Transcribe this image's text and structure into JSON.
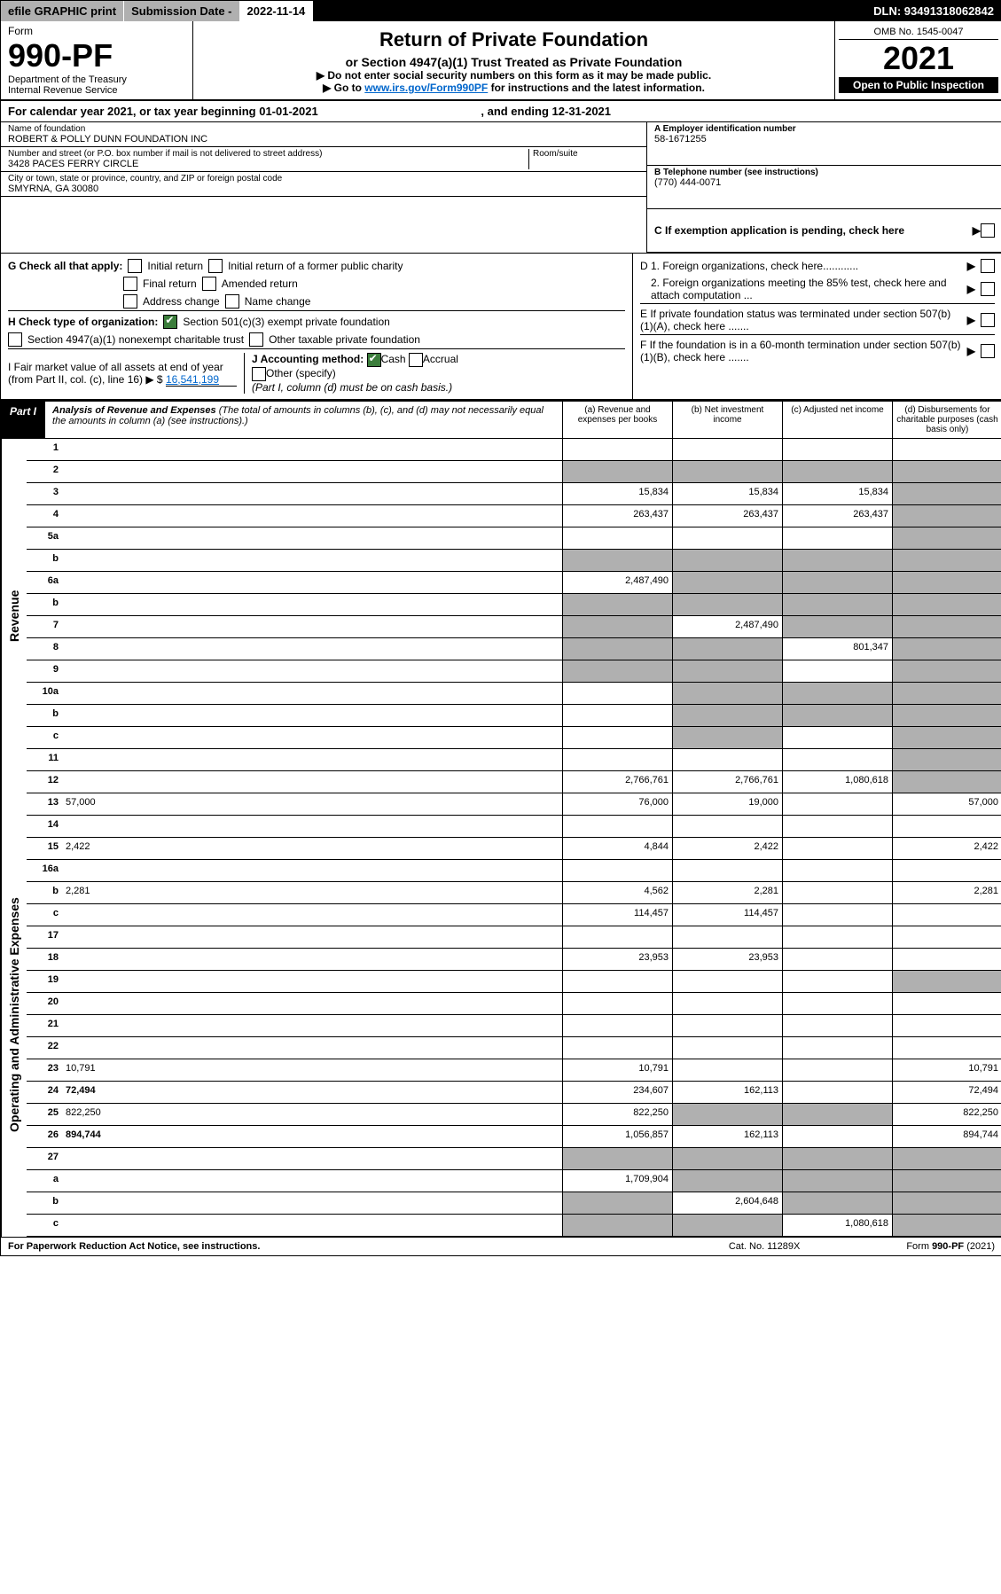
{
  "topbar": {
    "efile": "efile GRAPHIC print",
    "sub_label": "Submission Date - ",
    "sub_date": "2022-11-14",
    "dln": "DLN: 93491318062842"
  },
  "header": {
    "form": "Form",
    "number": "990-PF",
    "dept1": "Department of the Treasury",
    "dept2": "Internal Revenue Service",
    "title": "Return of Private Foundation",
    "subtitle": "or Section 4947(a)(1) Trust Treated as Private Foundation",
    "note1": "▶ Do not enter social security numbers on this form as it may be made public.",
    "note2_pre": "▶ Go to ",
    "note2_link": "www.irs.gov/Form990PF",
    "note2_post": " for instructions and the latest information.",
    "omb": "OMB No. 1545-0047",
    "year": "2021",
    "open": "Open to Public Inspection"
  },
  "cal": {
    "text": "For calendar year 2021, or tax year beginning 01-01-2021",
    "ending": ", and ending 12-31-2021"
  },
  "info": {
    "name_lbl": "Name of foundation",
    "name": "ROBERT & POLLY DUNN FOUNDATION INC",
    "addr_lbl": "Number and street (or P.O. box number if mail is not delivered to street address)",
    "addr": "3428 PACES FERRY CIRCLE",
    "room_lbl": "Room/suite",
    "city_lbl": "City or town, state or province, country, and ZIP or foreign postal code",
    "city": "SMYRNA, GA  30080",
    "ein_lbl": "A Employer identification number",
    "ein": "58-1671255",
    "phone_lbl": "B Telephone number (see instructions)",
    "phone": "(770) 444-0071",
    "exempt_lbl": "C If exemption application is pending, check here"
  },
  "checks": {
    "g_lbl": "G Check all that apply:",
    "g1": "Initial return",
    "g2": "Initial return of a former public charity",
    "g3": "Final return",
    "g4": "Amended return",
    "g5": "Address change",
    "g6": "Name change",
    "h_lbl": "H Check type of organization:",
    "h1": "Section 501(c)(3) exempt private foundation",
    "h2": "Section 4947(a)(1) nonexempt charitable trust",
    "h3": "Other taxable private foundation",
    "i_lbl": "I Fair market value of all assets at end of year (from Part II, col. (c), line 16) ▶ $",
    "i_val": "16,541,199",
    "j_lbl": "J Accounting method:",
    "j1": "Cash",
    "j2": "Accrual",
    "j3": "Other (specify)",
    "j_note": "(Part I, column (d) must be on cash basis.)",
    "d1": "D 1. Foreign organizations, check here............",
    "d2": "2. Foreign organizations meeting the 85% test, check here and attach computation ...",
    "e": "E  If private foundation status was terminated under section 507(b)(1)(A), check here .......",
    "f": "F  If the foundation is in a 60-month termination under section 507(b)(1)(B), check here .......",
    "arrow": "▶"
  },
  "part1": {
    "tag": "Part I",
    "title": "Analysis of Revenue and Expenses",
    "note": " (The total of amounts in columns (b), (c), and (d) may not necessarily equal the amounts in column (a) (see instructions).)",
    "col_a": "(a) Revenue and expenses per books",
    "col_b": "(b) Net investment income",
    "col_c": "(c) Adjusted net income",
    "col_d": "(d) Disbursements for charitable purposes (cash basis only)"
  },
  "sections": {
    "revenue": "Revenue",
    "expenses": "Operating and Administrative Expenses"
  },
  "rows": [
    {
      "n": "1",
      "d": "",
      "a": "",
      "b": "",
      "c": "",
      "greyD": false
    },
    {
      "n": "2",
      "d": "",
      "a": "",
      "b": "",
      "c": "",
      "greyA": true,
      "greyB": true,
      "greyC": true,
      "greyD": true
    },
    {
      "n": "3",
      "d": "",
      "a": "15,834",
      "b": "15,834",
      "c": "15,834",
      "greyD": true
    },
    {
      "n": "4",
      "d": "",
      "a": "263,437",
      "b": "263,437",
      "c": "263,437",
      "greyD": true
    },
    {
      "n": "5a",
      "d": "",
      "a": "",
      "b": "",
      "c": "",
      "greyD": true
    },
    {
      "n": "b",
      "d": "",
      "a": "",
      "b": "",
      "c": "",
      "greyA": true,
      "greyB": true,
      "greyC": true,
      "greyD": true
    },
    {
      "n": "6a",
      "d": "",
      "a": "2,487,490",
      "b": "",
      "c": "",
      "greyB": true,
      "greyC": true,
      "greyD": true
    },
    {
      "n": "b",
      "d": "",
      "a": "",
      "b": "",
      "c": "",
      "greyA": true,
      "greyB": true,
      "greyC": true,
      "greyD": true
    },
    {
      "n": "7",
      "d": "",
      "a": "",
      "b": "2,487,490",
      "c": "",
      "greyA": true,
      "greyC": true,
      "greyD": true
    },
    {
      "n": "8",
      "d": "",
      "a": "",
      "b": "",
      "c": "801,347",
      "greyA": true,
      "greyB": true,
      "greyD": true
    },
    {
      "n": "9",
      "d": "",
      "a": "",
      "b": "",
      "c": "",
      "greyA": true,
      "greyB": true,
      "greyD": true
    },
    {
      "n": "10a",
      "d": "",
      "a": "",
      "b": "",
      "c": "",
      "greyB": true,
      "greyC": true,
      "greyD": true
    },
    {
      "n": "b",
      "d": "",
      "a": "",
      "b": "",
      "c": "",
      "greyB": true,
      "greyC": true,
      "greyD": true
    },
    {
      "n": "c",
      "d": "",
      "a": "",
      "b": "",
      "c": "",
      "greyB": true,
      "greyD": true
    },
    {
      "n": "11",
      "d": "",
      "a": "",
      "b": "",
      "c": "",
      "greyD": true
    },
    {
      "n": "12",
      "d": "",
      "a": "2,766,761",
      "b": "2,766,761",
      "c": "1,080,618",
      "bold": true,
      "greyD": true
    }
  ],
  "rows2": [
    {
      "n": "13",
      "d": "57,000",
      "a": "76,000",
      "b": "19,000",
      "c": ""
    },
    {
      "n": "14",
      "d": "",
      "a": "",
      "b": "",
      "c": ""
    },
    {
      "n": "15",
      "d": "2,422",
      "a": "4,844",
      "b": "2,422",
      "c": ""
    },
    {
      "n": "16a",
      "d": "",
      "a": "",
      "b": "",
      "c": ""
    },
    {
      "n": "b",
      "d": "2,281",
      "a": "4,562",
      "b": "2,281",
      "c": ""
    },
    {
      "n": "c",
      "d": "",
      "a": "114,457",
      "b": "114,457",
      "c": ""
    },
    {
      "n": "17",
      "d": "",
      "a": "",
      "b": "",
      "c": ""
    },
    {
      "n": "18",
      "d": "",
      "a": "23,953",
      "b": "23,953",
      "c": ""
    },
    {
      "n": "19",
      "d": "",
      "a": "",
      "b": "",
      "c": "",
      "greyD": true
    },
    {
      "n": "20",
      "d": "",
      "a": "",
      "b": "",
      "c": ""
    },
    {
      "n": "21",
      "d": "",
      "a": "",
      "b": "",
      "c": ""
    },
    {
      "n": "22",
      "d": "",
      "a": "",
      "b": "",
      "c": ""
    },
    {
      "n": "23",
      "d": "10,791",
      "a": "10,791",
      "b": "",
      "c": ""
    },
    {
      "n": "24",
      "d": "72,494",
      "a": "234,607",
      "b": "162,113",
      "c": "",
      "bold": true
    },
    {
      "n": "25",
      "d": "822,250",
      "a": "822,250",
      "b": "",
      "c": "",
      "greyB": true,
      "greyC": true
    },
    {
      "n": "26",
      "d": "894,744",
      "a": "1,056,857",
      "b": "162,113",
      "c": "",
      "bold": true
    },
    {
      "n": "27",
      "d": "",
      "a": "",
      "b": "",
      "c": "",
      "greyA": true,
      "greyB": true,
      "greyC": true,
      "greyD": true
    },
    {
      "n": "a",
      "d": "",
      "a": "1,709,904",
      "b": "",
      "c": "",
      "bold": true,
      "greyB": true,
      "greyC": true,
      "greyD": true
    },
    {
      "n": "b",
      "d": "",
      "a": "",
      "b": "2,604,648",
      "c": "",
      "bold": true,
      "greyA": true,
      "greyC": true,
      "greyD": true
    },
    {
      "n": "c",
      "d": "",
      "a": "",
      "b": "",
      "c": "1,080,618",
      "bold": true,
      "greyA": true,
      "greyB": true,
      "greyD": true
    }
  ],
  "footer": {
    "left": "For Paperwork Reduction Act Notice, see instructions.",
    "mid": "Cat. No. 11289X",
    "right": "Form 990-PF (2021)"
  }
}
